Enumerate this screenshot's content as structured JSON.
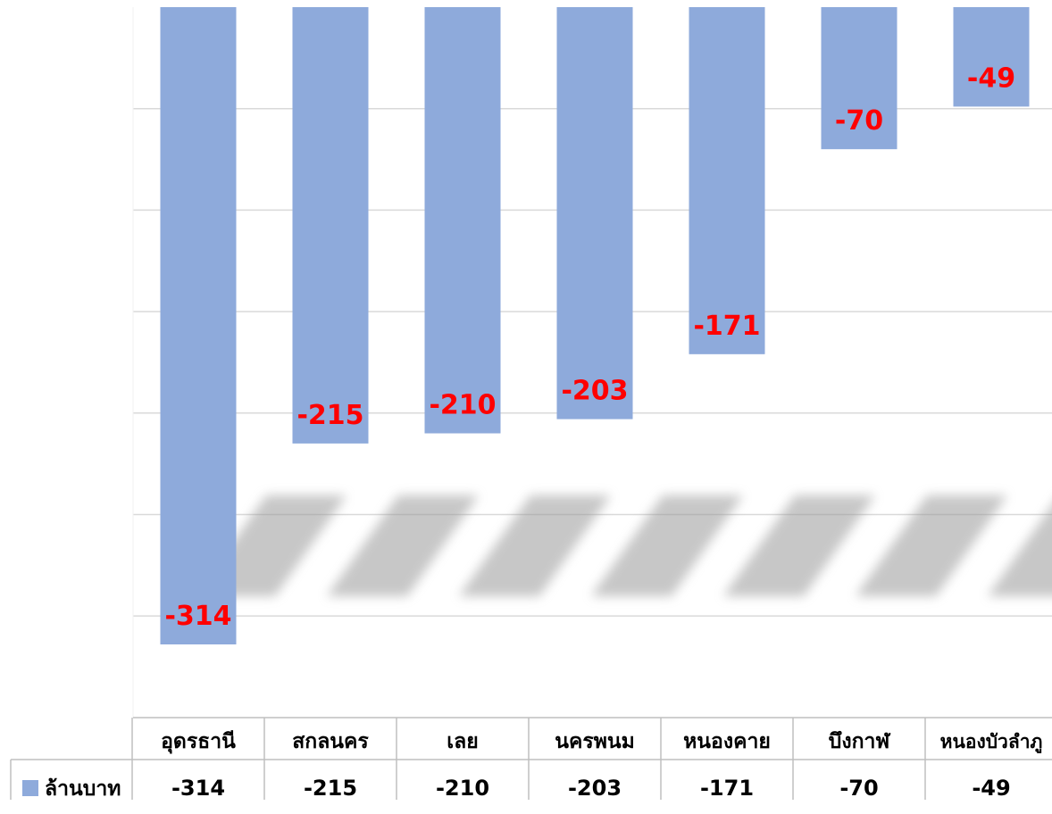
{
  "chart_data": {
    "type": "bar",
    "categories": [
      "อุดรธานี",
      "สกลนคร",
      "เลย",
      "นครพนม",
      "หนองคาย",
      "บึงกาฬ",
      "หนองบัวลำภู"
    ],
    "series": [
      {
        "name": "ล้านบาท",
        "values": [
          -314,
          -215,
          -210,
          -203,
          -171,
          -70,
          -49
        ]
      }
    ],
    "data_labels": [
      "-314",
      "-215",
      "-210",
      "-203",
      "-171",
      "-70",
      "-49"
    ],
    "table_values": [
      "-314",
      "-215",
      "-210",
      "-203",
      "-171",
      "-70",
      "-49"
    ],
    "ylim": [
      -350,
      0
    ],
    "grid": true,
    "legend_placement": "data-table-left",
    "title": "",
    "xlabel": "",
    "ylabel": ""
  },
  "colors": {
    "bar": "#8eaadb",
    "data_label": "#ff0000",
    "gridline": "#d9d9d9",
    "table_text": "#000000"
  }
}
